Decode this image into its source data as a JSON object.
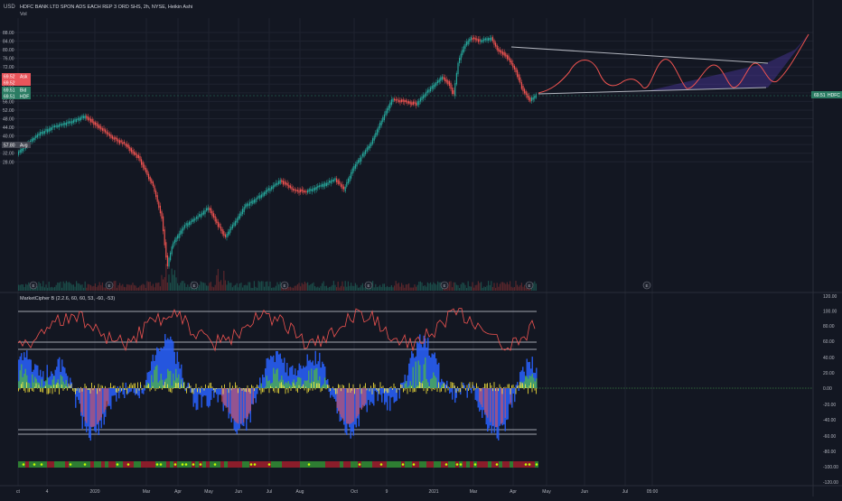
{
  "legend": {
    "currency": "USD",
    "title": "HDFC BANK LTD SPON ADS EACH REP 3 ORD SHS, 2h, NYSE, Heikin Ashi",
    "vol_label": "Vol",
    "indicator_title": "MarketCipher B (2.2.6, 60, 60, 53, -60, -53)"
  },
  "price_tags": [
    {
      "text": "69.52",
      "label": "Ask",
      "color": "#e8555b"
    },
    {
      "text": "69.52",
      "label": "",
      "color": "#e8555b"
    },
    {
      "text": "69.51",
      "label": "Bid",
      "color": "#2b7c63"
    },
    {
      "text": "69.51",
      "label": "HDF",
      "color": "#2b7c63"
    },
    {
      "text": "57.80",
      "label": "Avg",
      "color": "#434651"
    }
  ],
  "price_axis": [
    "88.00",
    "84.00",
    "80.00",
    "76.00",
    "72.00",
    "68.00",
    "64.00",
    "60.00",
    "56.00",
    "52.00",
    "48.00",
    "44.00",
    "40.00",
    "36.00",
    "32.00",
    "28.00"
  ],
  "price_axis_right": {
    "last_price": "69.51",
    "label": "HDFC"
  },
  "osc_axis": [
    "120.00",
    "100.00",
    "80.00",
    "60.00",
    "40.00",
    "20.00",
    "0.00",
    "-20.00",
    "-40.00",
    "-60.00",
    "-80.00",
    "-100.00",
    "-120.00"
  ],
  "time_axis": [
    "ct",
    "4",
    "2020",
    "Mar",
    "Apr",
    "May",
    "Jun",
    "Jul",
    "Aug",
    "Oct",
    "9",
    "2021",
    "Mar",
    "Apr",
    "May",
    "Jun",
    "Jul",
    "05:00"
  ],
  "event_badge": "E",
  "colors": {
    "background": "#131722",
    "up": "#26a69a",
    "down": "#ef5350",
    "pattern_line": "#b2b5be",
    "projection_fill": "#5b3fc4",
    "projection_line": "#ef5350",
    "osc_green": "#4caf50",
    "osc_blue": "#2962ff",
    "osc_red": "#ef5350",
    "osc_yellow": "#ffeb3b"
  }
}
